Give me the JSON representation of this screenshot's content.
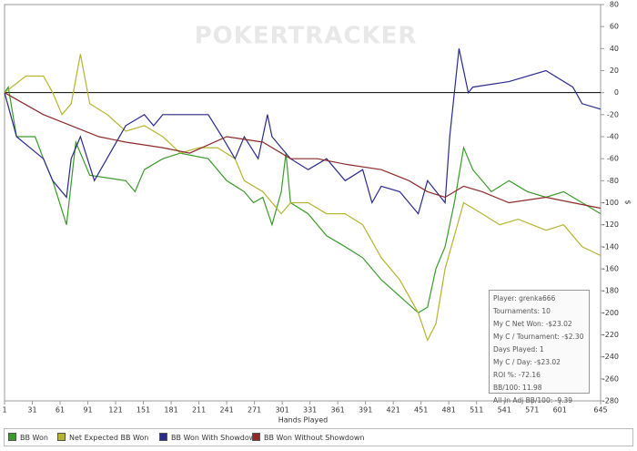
{
  "chart_data": {
    "type": "line",
    "watermark": "POKERTRACKER",
    "x_label": "Hands Played",
    "y_label": "$",
    "xlim": [
      1,
      645
    ],
    "xticks": [
      1,
      31,
      61,
      91,
      121,
      151,
      181,
      211,
      241,
      271,
      301,
      331,
      361,
      391,
      421,
      451,
      481,
      511,
      541,
      571,
      601,
      645
    ],
    "ylim": [
      -280,
      80
    ],
    "yticks": [
      80,
      60,
      40,
      20,
      0,
      -20,
      -40,
      -60,
      -80,
      -100,
      -120,
      -140,
      -160,
      -180,
      -200,
      -220,
      -240,
      -260,
      -280
    ],
    "zero_line": 0,
    "series": [
      {
        "name": "BB Won",
        "color": "#3a9a2a",
        "x": [
          1,
          5,
          14,
          34,
          43,
          53,
          68,
          78,
          93,
          132,
          142,
          152,
          172,
          191,
          221,
          241,
          260,
          270,
          280,
          290,
          300,
          305,
          310,
          329,
          349,
          369,
          388,
          408,
          428,
          448,
          458,
          467,
          477,
          487,
          497,
          507,
          527,
          546,
          566,
          586,
          605,
          625,
          645
        ],
        "values": [
          0,
          5,
          -40,
          -40,
          -60,
          -80,
          -120,
          -45,
          -75,
          -80,
          -90,
          -70,
          -60,
          -55,
          -60,
          -80,
          -90,
          -100,
          -95,
          -120,
          -90,
          -55,
          -100,
          -110,
          -130,
          -140,
          -150,
          -170,
          -185,
          -200,
          -195,
          -160,
          -140,
          -100,
          -50,
          -70,
          -90,
          -80,
          -90,
          -95,
          -90,
          -100,
          -110
        ]
      },
      {
        "name": "Net Expected BB Won",
        "color": "#b4b432",
        "x": [
          1,
          24,
          43,
          53,
          63,
          73,
          83,
          93,
          112,
          132,
          152,
          172,
          191,
          211,
          231,
          250,
          260,
          280,
          300,
          310,
          329,
          349,
          369,
          388,
          408,
          428,
          448,
          458,
          467,
          477,
          487,
          497,
          517,
          536,
          556,
          586,
          605,
          625,
          645
        ],
        "values": [
          0,
          15,
          15,
          0,
          -20,
          -10,
          35,
          -10,
          -20,
          -35,
          -30,
          -40,
          -55,
          -50,
          -50,
          -60,
          -80,
          -90,
          -110,
          -100,
          -100,
          -110,
          -110,
          -120,
          -150,
          -170,
          -200,
          -225,
          -210,
          -160,
          -130,
          -100,
          -110,
          -120,
          -115,
          -125,
          -120,
          -140,
          -148
        ]
      },
      {
        "name": "BB Won With Showdown",
        "color": "#2a2a8c",
        "x": [
          1,
          14,
          43,
          53,
          68,
          73,
          83,
          98,
          132,
          152,
          162,
          172,
          221,
          236,
          250,
          260,
          275,
          285,
          290,
          300,
          310,
          329,
          349,
          369,
          388,
          398,
          408,
          428,
          448,
          458,
          477,
          482,
          487,
          492,
          497,
          502,
          507,
          546,
          586,
          615,
          625,
          645
        ],
        "values": [
          0,
          -40,
          -60,
          -80,
          -95,
          -60,
          -40,
          -80,
          -30,
          -20,
          -30,
          -20,
          -20,
          -40,
          -60,
          -40,
          -60,
          -20,
          -40,
          -50,
          -60,
          -70,
          -60,
          -80,
          -70,
          -100,
          -85,
          -90,
          -110,
          -80,
          -100,
          -40,
          0,
          40,
          20,
          0,
          5,
          10,
          20,
          5,
          -10,
          -15
        ]
      },
      {
        "name": "BB Won Without Showdown",
        "color": "#8c2a2a",
        "x": [
          1,
          43,
          73,
          103,
          132,
          172,
          201,
          241,
          280,
          310,
          339,
          369,
          408,
          438,
          458,
          477,
          497,
          517,
          546,
          586,
          615,
          645
        ],
        "values": [
          0,
          -20,
          -30,
          -40,
          -45,
          -50,
          -55,
          -40,
          -45,
          -60,
          -60,
          -65,
          -70,
          -80,
          -90,
          -95,
          -85,
          -90,
          -100,
          -95,
          -100,
          -105
        ]
      }
    ],
    "info_box": [
      "Player: grenka666",
      "Tournaments: 10",
      "My C Net Won: -$23.02",
      "My C / Tournament: -$2.30",
      "Days Played: 1",
      "My C / Day: -$23.02",
      "ROI %: -72.16",
      "BB/100: 11.98",
      "All-In Adj BB/100: -9.39"
    ]
  }
}
